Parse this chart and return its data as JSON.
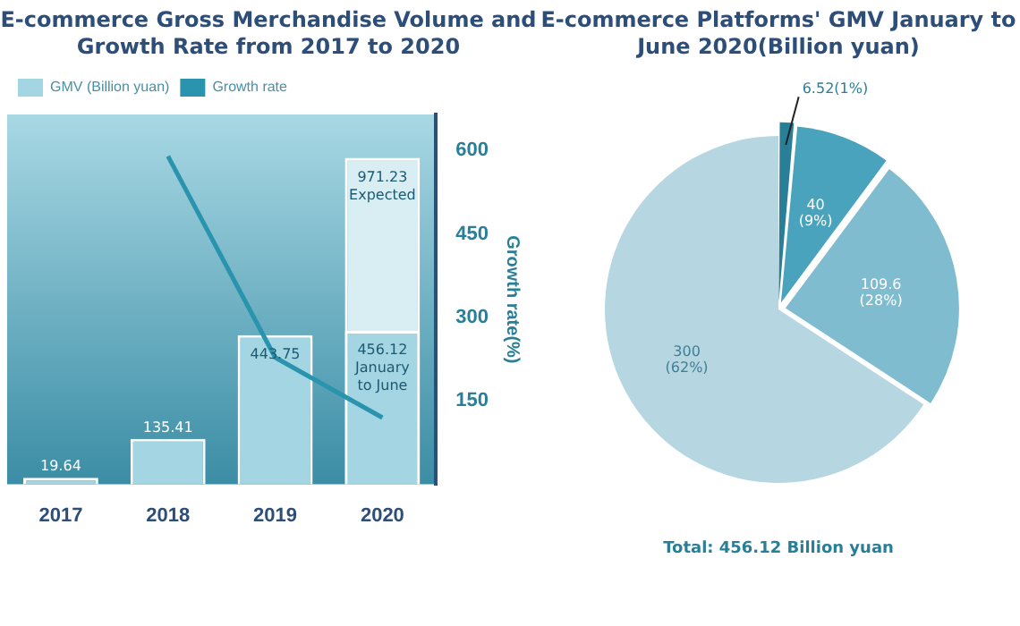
{
  "chart_data": [
    {
      "type": "bar",
      "title": "E-commerce Gross Merchandise Volume and Growth Rate from 2017 to 2020",
      "categories": [
        "2017",
        "2018",
        "2019",
        "2020"
      ],
      "legend": "top left",
      "grid": false,
      "ylim": [
        0,
        1100
      ],
      "y2label": "Growth rate(%)",
      "y2lim": [
        0,
        665
      ],
      "y2ticks": [
        150,
        300,
        450,
        600
      ],
      "series": [
        {
          "name": "GMV (Billion yuan)",
          "type": "bar",
          "color": "#a3d5e2",
          "values": [
            19.64,
            135.41,
            443.75,
            456.12
          ],
          "value_labels": [
            "19.64",
            "135.41",
            "443.75",
            "456.12 January to June"
          ]
        },
        {
          "type": "bar",
          "color": "#d9eef3",
          "values": [
            null,
            null,
            null,
            971.23
          ],
          "value_labels": [
            null,
            null,
            null,
            "971.23 Expected"
          ]
        },
        {
          "name": "Growth rate",
          "type": "line",
          "axis": "y2",
          "color": "#2a93ad",
          "values": [
            null,
            590,
            228,
            120
          ]
        }
      ]
    },
    {
      "type": "pie",
      "title": "E-commerce Platforms' GMV January to June 2020(Billion yuan)",
      "categories": [
        null,
        null,
        null,
        null
      ],
      "values": [
        6.52,
        40,
        109.6,
        300
      ],
      "colors": [
        "#2a7f98",
        "#4aa3bd",
        "#7fbcd0",
        "#b6d7e2"
      ],
      "value_labels": [
        "6.52(1%)",
        "40 (9%)",
        "109.6 (28%)",
        "300 (62%)"
      ],
      "legend": false,
      "annotations": [
        "Total: 456.12 Billion yuan"
      ]
    }
  ]
}
